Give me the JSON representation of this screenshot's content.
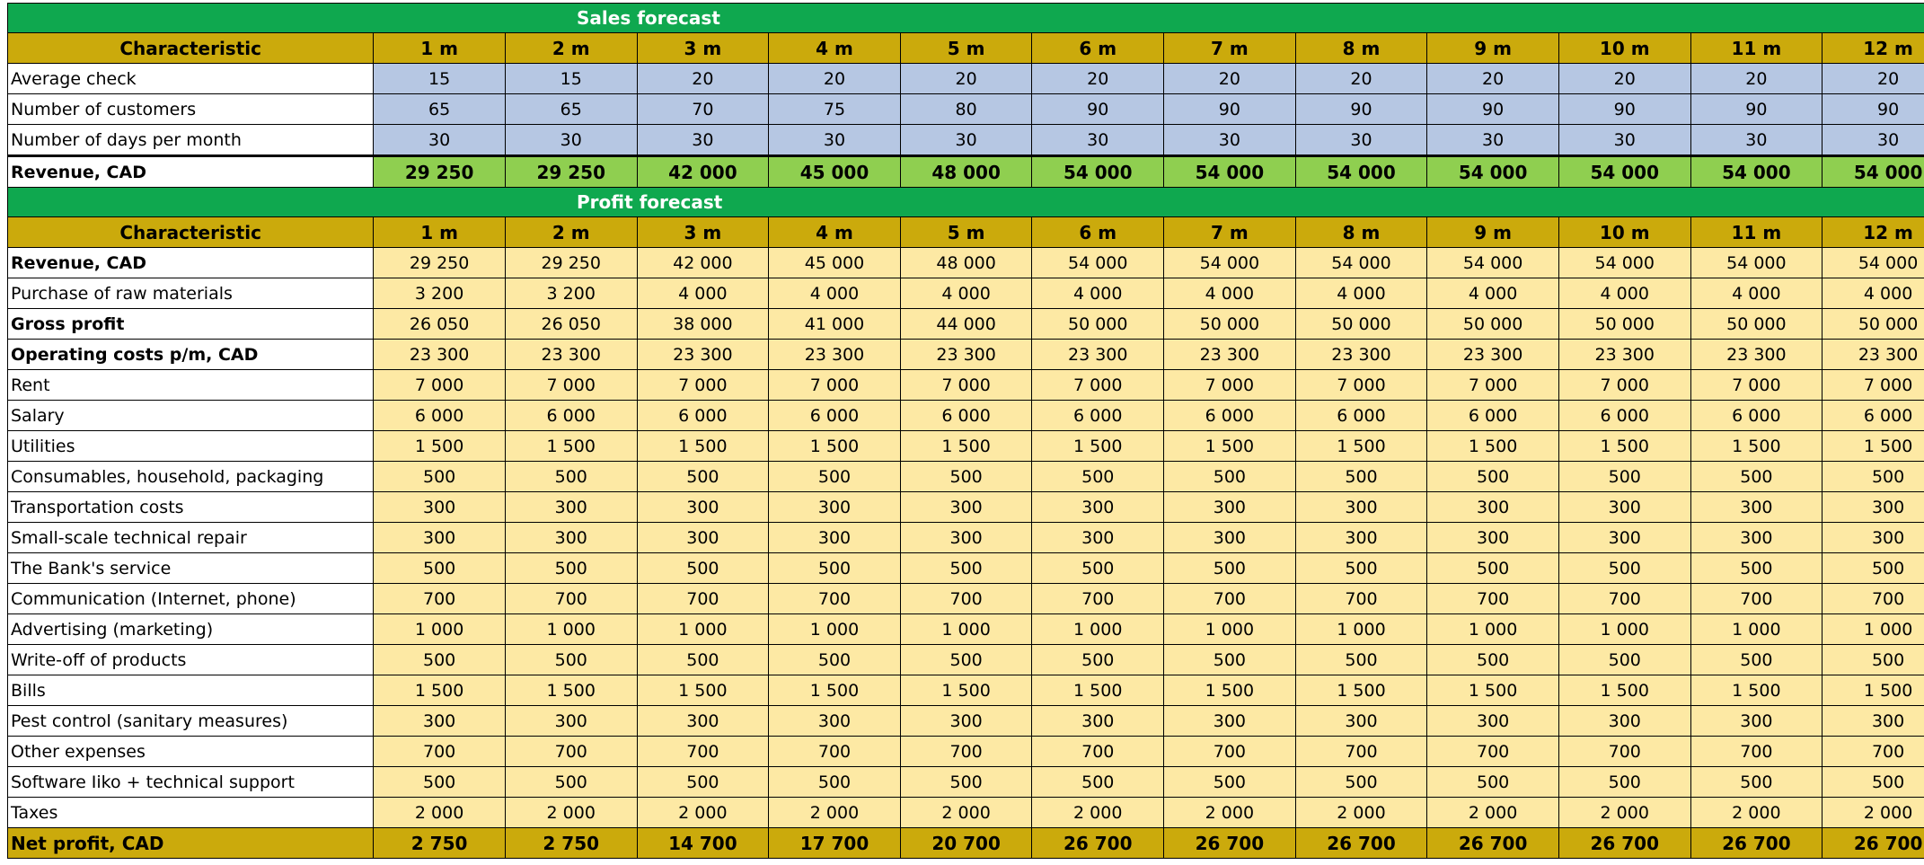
{
  "sales": {
    "title": "Sales forecast",
    "header": [
      "Characteristic",
      "1 m",
      "2 m",
      "3 m",
      "4 m",
      "5 m",
      "6 m",
      "7 m",
      "8 m",
      "9 m",
      "10 m",
      "11 m",
      "12 m"
    ],
    "rows": [
      {
        "label": "Average check",
        "values": [
          "15",
          "15",
          "20",
          "20",
          "20",
          "20",
          "20",
          "20",
          "20",
          "20",
          "20",
          "20"
        ]
      },
      {
        "label": "Number of customers",
        "values": [
          "65",
          "65",
          "70",
          "75",
          "80",
          "90",
          "90",
          "90",
          "90",
          "90",
          "90",
          "90"
        ]
      },
      {
        "label": "Number of days per month",
        "values": [
          "30",
          "30",
          "30",
          "30",
          "30",
          "30",
          "30",
          "30",
          "30",
          "30",
          "30",
          "30"
        ]
      },
      {
        "label": "Revenue, CAD",
        "values": [
          "29 250",
          "29 250",
          "42 000",
          "45 000",
          "48 000",
          "54 000",
          "54 000",
          "54 000",
          "54 000",
          "54 000",
          "54 000",
          "54 000"
        ]
      }
    ]
  },
  "profit": {
    "title": "Profit forecast",
    "header": [
      "Characteristic",
      "1 m",
      "2 m",
      "3 m",
      "4 m",
      "5 m",
      "6 m",
      "7 m",
      "8 m",
      "9 m",
      "10 m",
      "11 m",
      "12 m"
    ],
    "rows": [
      {
        "label": "Revenue, CAD",
        "values": [
          "29 250",
          "29 250",
          "42 000",
          "45 000",
          "48 000",
          "54 000",
          "54 000",
          "54 000",
          "54 000",
          "54 000",
          "54 000",
          "54 000"
        ]
      },
      {
        "label": "Purchase of raw materials",
        "values": [
          "3 200",
          "3 200",
          "4 000",
          "4 000",
          "4 000",
          "4 000",
          "4 000",
          "4 000",
          "4 000",
          "4 000",
          "4 000",
          "4 000"
        ]
      },
      {
        "label": "Gross profit",
        "values": [
          "26 050",
          "26 050",
          "38 000",
          "41 000",
          "44 000",
          "50 000",
          "50 000",
          "50 000",
          "50 000",
          "50 000",
          "50 000",
          "50 000"
        ]
      },
      {
        "label": "Operating costs p/m, CAD",
        "values": [
          "23 300",
          "23 300",
          "23 300",
          "23 300",
          "23 300",
          "23 300",
          "23 300",
          "23 300",
          "23 300",
          "23 300",
          "23 300",
          "23 300"
        ]
      },
      {
        "label": "Rent",
        "values": [
          "7 000",
          "7 000",
          "7 000",
          "7 000",
          "7 000",
          "7 000",
          "7 000",
          "7 000",
          "7 000",
          "7 000",
          "7 000",
          "7 000"
        ]
      },
      {
        "label": "Salary",
        "values": [
          "6 000",
          "6 000",
          "6 000",
          "6 000",
          "6 000",
          "6 000",
          "6 000",
          "6 000",
          "6 000",
          "6 000",
          "6 000",
          "6 000"
        ]
      },
      {
        "label": "Utilities",
        "values": [
          "1 500",
          "1 500",
          "1 500",
          "1 500",
          "1 500",
          "1 500",
          "1 500",
          "1 500",
          "1 500",
          "1 500",
          "1 500",
          "1 500"
        ]
      },
      {
        "label": "Consumables, household, packaging",
        "values": [
          "500",
          "500",
          "500",
          "500",
          "500",
          "500",
          "500",
          "500",
          "500",
          "500",
          "500",
          "500"
        ]
      },
      {
        "label": "Transportation costs",
        "values": [
          "300",
          "300",
          "300",
          "300",
          "300",
          "300",
          "300",
          "300",
          "300",
          "300",
          "300",
          "300"
        ]
      },
      {
        "label": "Small-scale technical repair",
        "values": [
          "300",
          "300",
          "300",
          "300",
          "300",
          "300",
          "300",
          "300",
          "300",
          "300",
          "300",
          "300"
        ]
      },
      {
        "label": "The Bank's service",
        "values": [
          "500",
          "500",
          "500",
          "500",
          "500",
          "500",
          "500",
          "500",
          "500",
          "500",
          "500",
          "500"
        ]
      },
      {
        "label": "Communication (Internet, phone)",
        "values": [
          "700",
          "700",
          "700",
          "700",
          "700",
          "700",
          "700",
          "700",
          "700",
          "700",
          "700",
          "700"
        ]
      },
      {
        "label": "Advertising (marketing)",
        "values": [
          "1 000",
          "1 000",
          "1 000",
          "1 000",
          "1 000",
          "1 000",
          "1 000",
          "1 000",
          "1 000",
          "1 000",
          "1 000",
          "1 000"
        ]
      },
      {
        "label": "Write-off of products",
        "values": [
          "500",
          "500",
          "500",
          "500",
          "500",
          "500",
          "500",
          "500",
          "500",
          "500",
          "500",
          "500"
        ]
      },
      {
        "label": "Bills",
        "values": [
          "1 500",
          "1 500",
          "1 500",
          "1 500",
          "1 500",
          "1 500",
          "1 500",
          "1 500",
          "1 500",
          "1 500",
          "1 500",
          "1 500"
        ]
      },
      {
        "label": "Pest control (sanitary measures)",
        "values": [
          "300",
          "300",
          "300",
          "300",
          "300",
          "300",
          "300",
          "300",
          "300",
          "300",
          "300",
          "300"
        ]
      },
      {
        "label": "Other expenses",
        "values": [
          "700",
          "700",
          "700",
          "700",
          "700",
          "700",
          "700",
          "700",
          "700",
          "700",
          "700",
          "700"
        ]
      },
      {
        "label": "Software Iiko + technical support",
        "values": [
          "500",
          "500",
          "500",
          "500",
          "500",
          "500",
          "500",
          "500",
          "500",
          "500",
          "500",
          "500"
        ]
      },
      {
        "label": "Taxes",
        "values": [
          "2 000",
          "2 000",
          "2 000",
          "2 000",
          "2 000",
          "2 000",
          "2 000",
          "2 000",
          "2 000",
          "2 000",
          "2 000",
          "2 000"
        ]
      },
      {
        "label": "Net profit, CAD",
        "values": [
          "2 750",
          "2 750",
          "14 700",
          "17 700",
          "20 700",
          "26 700",
          "26 700",
          "26 700",
          "26 700",
          "26 700",
          "26 700",
          "26 700"
        ]
      }
    ]
  }
}
